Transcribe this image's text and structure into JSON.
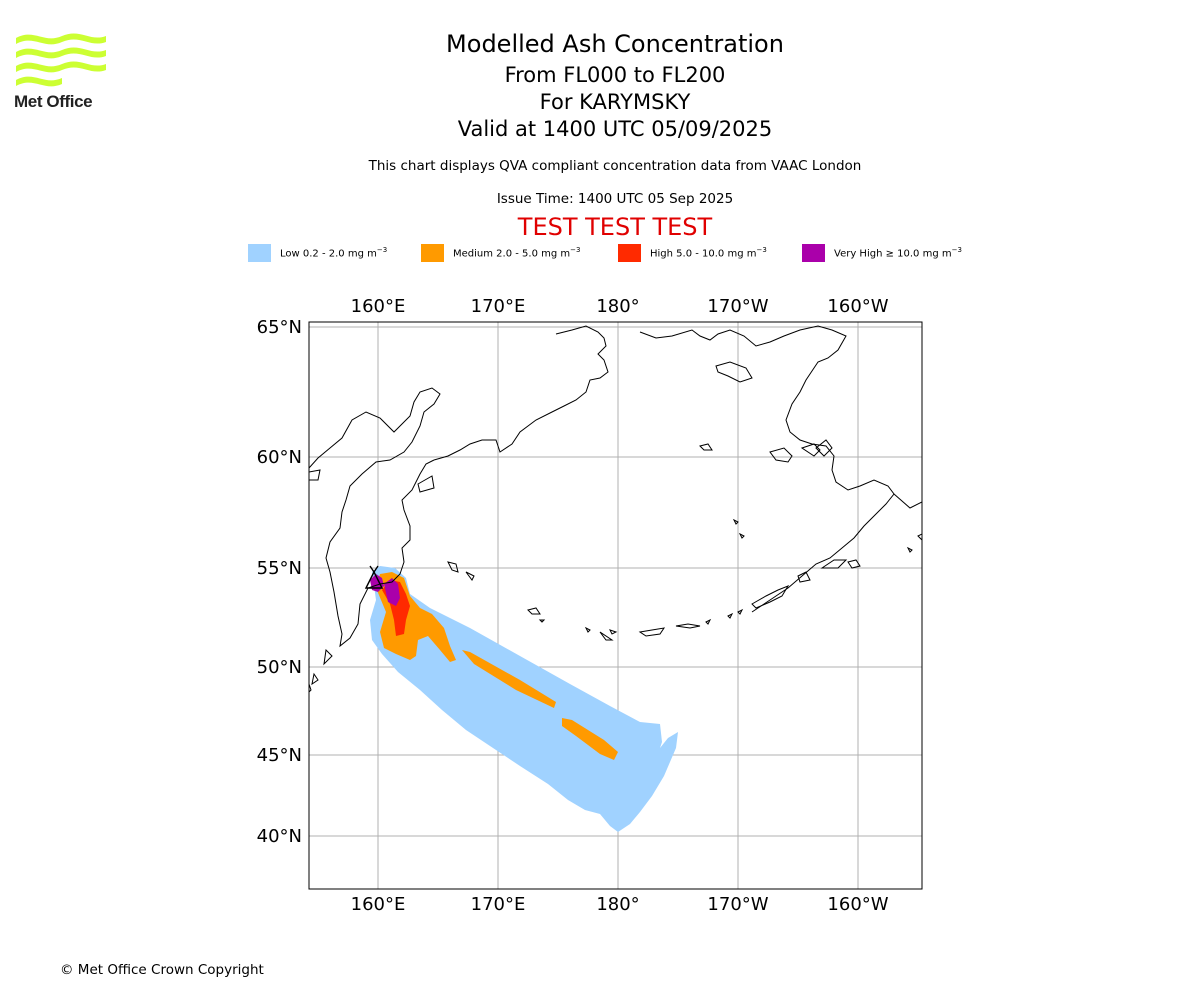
{
  "logo": {
    "text": "Met Office",
    "colors": {
      "waves": "#ccff33",
      "text": "#222222"
    }
  },
  "titles": {
    "main": "Modelled Ash Concentration",
    "levels": "From FL000 to FL200",
    "volcano": "For KARYMSKY",
    "valid": "Valid at 1400 UTC 05/09/2025",
    "description": "This chart displays QVA compliant concentration data from VAAC London",
    "issue_time": "Issue Time: 1400 UTC 05 Sep 2025",
    "test_banner": "TEST TEST TEST"
  },
  "legend": [
    {
      "label": "Low 0.2 - 2.0 mg m",
      "color": "#a0d2ff"
    },
    {
      "label": "Medium 2.0 - 5.0 mg m",
      "color": "#ff9a00"
    },
    {
      "label": "High 5.0 - 10.0 mg m",
      "color": "#ff2a00"
    },
    {
      "label": "Very High ≥ 10.0 mg m",
      "color": "#aa00aa"
    }
  ],
  "legend_unit_exponent": "−3",
  "map": {
    "longitude_ticks": [
      "160°E",
      "170°E",
      "180°",
      "170°W",
      "160°W"
    ],
    "latitude_ticks": [
      "65°N",
      "60°N",
      "55°N",
      "50°N",
      "45°N",
      "40°N"
    ],
    "grid_color": "#b0b0b0",
    "coast_color": "#000000"
  },
  "footer": {
    "copyright": "© Met Office Crown Copyright"
  }
}
